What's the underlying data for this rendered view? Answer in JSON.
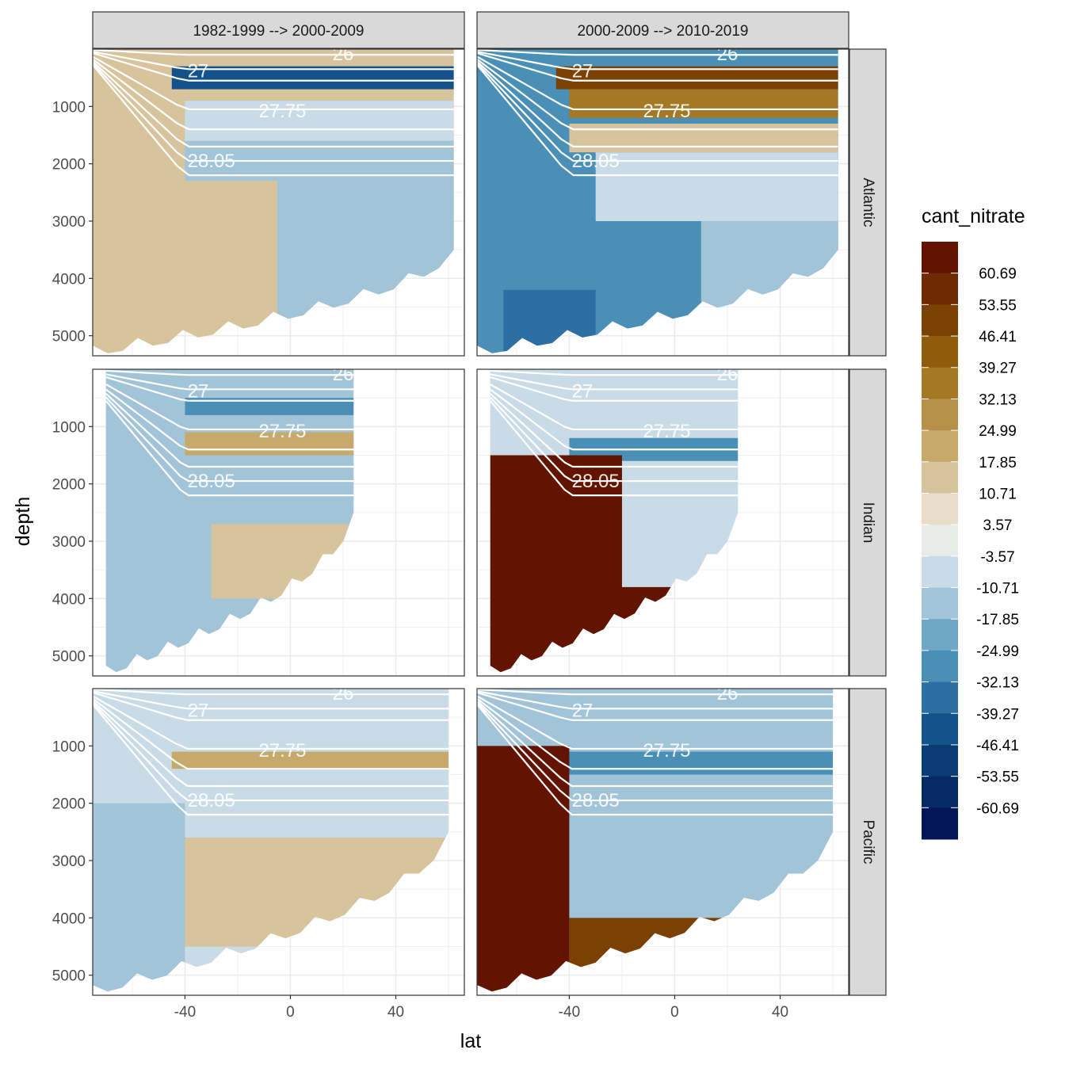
{
  "chart_data": {
    "type": "heatmap",
    "description_fill": "filled contour sections of cant_nitrate vs latitude and depth, faceted by period change (columns) and basin (rows)",
    "xlabel": "lat",
    "ylabel": "depth",
    "xlim": [
      -75,
      66
    ],
    "ylim": [
      0,
      5350
    ],
    "y_reversed": true,
    "x_ticks": [
      -40,
      0,
      40
    ],
    "y_ticks": [
      1000,
      2000,
      3000,
      4000,
      5000
    ],
    "columns": [
      "1982-1999 --> 2000-2009",
      "2000-2009 --> 2010-2019"
    ],
    "rows": [
      "Atlantic",
      "Indian",
      "Pacific"
    ],
    "legend": {
      "title": "cant_nitrate",
      "labels": [
        "60.69",
        "53.55",
        "46.41",
        "39.27",
        "32.13",
        "24.99",
        "17.85",
        "10.71",
        "3.57",
        "-3.57",
        "-10.71",
        "-17.85",
        "-24.99",
        "-32.13",
        "-39.27",
        "-46.41",
        "-53.55",
        "-60.69"
      ],
      "colors": [
        "#621400",
        "#6e2a02",
        "#7b4103",
        "#8f5c0c",
        "#a57826",
        "#b68f48",
        "#c6a96b",
        "#d8c49c",
        "#e8ddc8",
        "#e9ebe8",
        "#c8dbe6",
        "#a2c4d8",
        "#6ea8c6",
        "#4a8fb6",
        "#2e6fa3",
        "#13528b",
        "#093b75",
        "#062a63",
        "#031758"
      ]
    },
    "isopycnals": [
      "26",
      "27",
      "27.75",
      "28.05"
    ],
    "panels": {
      "Atlantic": {
        "extent": {
          "xmin": -75,
          "xmax": 62,
          "max_depth_left": 5350,
          "max_depth_right": 3500
        },
        "1982-1999 --> 2000-2009": {
          "background": "10.71",
          "bands": [
            {
              "x0": -45,
              "x1": 62,
              "d0": 300,
              "d1": 700,
              "color": "-39.27"
            },
            {
              "x0": -40,
              "x1": 62,
              "d0": 900,
              "d1": 1600,
              "color": "-3.57"
            },
            {
              "x0": -40,
              "x1": 62,
              "d0": 1600,
              "d1": 2300,
              "color": "-10.71"
            },
            {
              "x0": -5,
              "x1": 62,
              "d0": 2300,
              "d1": 5300,
              "color": "-10.71"
            }
          ]
        },
        "2000-2009 --> 2010-2019": {
          "background": "-24.99",
          "bands": [
            {
              "x0": -45,
              "x1": 62,
              "d0": 300,
              "d1": 700,
              "color": "46.41"
            },
            {
              "x0": -40,
              "x1": 62,
              "d0": 700,
              "d1": 1200,
              "color": "32.13"
            },
            {
              "x0": -40,
              "x1": 62,
              "d0": 1300,
              "d1": 1800,
              "color": "10.71"
            },
            {
              "x0": -30,
              "x1": 62,
              "d0": 1800,
              "d1": 3000,
              "color": "-3.57"
            },
            {
              "x0": 10,
              "x1": 62,
              "d0": 3000,
              "d1": 5300,
              "color": "-10.71"
            },
            {
              "x0": -65,
              "x1": -30,
              "d0": 4200,
              "d1": 5300,
              "color": "-32.13"
            }
          ]
        }
      },
      "Indian": {
        "extent": {
          "xmin": -70,
          "xmax": 24,
          "max_depth_left": 5350,
          "max_depth_right": 2500
        },
        "1982-1999 --> 2000-2009": {
          "background": "-10.71",
          "bands": [
            {
              "x0": -40,
              "x1": 24,
              "d0": 500,
              "d1": 800,
              "color": "-24.99"
            },
            {
              "x0": -40,
              "x1": 24,
              "d0": 1100,
              "d1": 1500,
              "color": "17.85"
            },
            {
              "x0": -30,
              "x1": 24,
              "d0": 2700,
              "d1": 4000,
              "color": "10.71"
            }
          ]
        },
        "2000-2009 --> 2010-2019": {
          "background": "-3.57",
          "bands": [
            {
              "x0": -40,
              "x1": 24,
              "d0": 1200,
              "d1": 1600,
              "color": "-24.99"
            },
            {
              "x0": -70,
              "x1": -20,
              "d0": 1500,
              "d1": 5350,
              "color": "60.69"
            },
            {
              "x0": -45,
              "x1": 5,
              "d0": 3800,
              "d1": 5350,
              "color": "60.69"
            }
          ]
        }
      },
      "Pacific": {
        "extent": {
          "xmin": -75,
          "xmax": 60,
          "max_depth_left": 5350,
          "max_depth_right": 2500
        },
        "1982-1999 --> 2000-2009": {
          "background": "-3.57",
          "bands": [
            {
              "x0": -45,
              "x1": 60,
              "d0": 1100,
              "d1": 1400,
              "color": "17.85"
            },
            {
              "x0": -50,
              "x1": 60,
              "d0": 2600,
              "d1": 4500,
              "color": "10.71"
            },
            {
              "x0": -75,
              "x1": -40,
              "d0": 2000,
              "d1": 5350,
              "color": "-10.71"
            }
          ]
        },
        "2000-2009 --> 2010-2019": {
          "background": "-10.71",
          "bands": [
            {
              "x0": -45,
              "x1": 60,
              "d0": 1100,
              "d1": 1500,
              "color": "-24.99"
            },
            {
              "x0": -75,
              "x1": -40,
              "d0": 1000,
              "d1": 5350,
              "color": "60.69"
            },
            {
              "x0": -40,
              "x1": 40,
              "d0": 4000,
              "d1": 5350,
              "color": "46.41"
            }
          ]
        }
      }
    }
  }
}
